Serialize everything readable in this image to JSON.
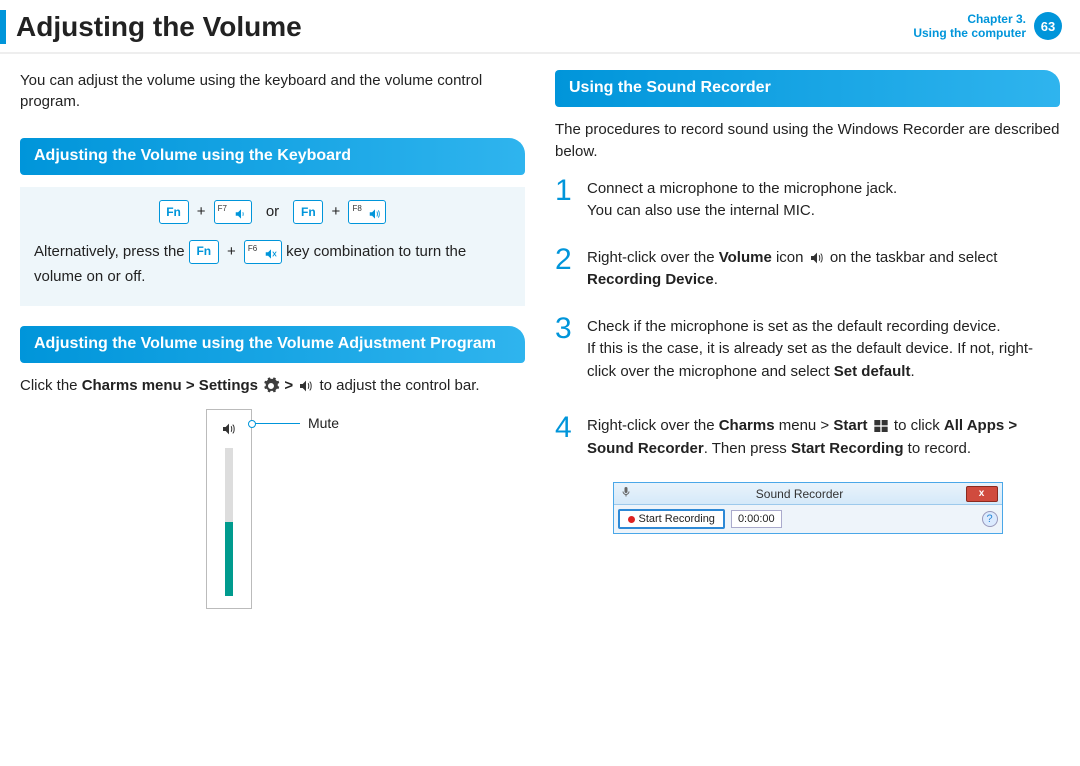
{
  "header": {
    "title": "Adjusting the Volume",
    "chapter_line1": "Chapter 3.",
    "chapter_line2": "Using the computer",
    "page_number": "63"
  },
  "left": {
    "intro": "You can adjust the volume using the keyboard and the volume control program.",
    "section1_title": "Adjusting the Volume using the Keyboard",
    "keys": {
      "fn": "Fn",
      "f7": "F7",
      "f8": "F8",
      "f6": "F6",
      "or": "or",
      "plus": "+"
    },
    "alt_text_pre": "Alternatively, press the ",
    "alt_text_post": " key combination to turn the volume on or off.",
    "section2_title": "Adjusting the Volume using the Volume Adjustment Program",
    "para2_pre": "Click the ",
    "para2_b1": "Charms menu > Settings",
    "para2_mid": " > ",
    "para2_post": " to adjust the control bar.",
    "mute_label": "Mute",
    "volume_fill_percent": 50
  },
  "right": {
    "section_title": "Using the Sound Recorder",
    "intro": "The procedures to record sound using the Windows Recorder are described below.",
    "steps": [
      {
        "num": "1",
        "html": "Connect a microphone to the microphone jack.<br>You can also use the internal MIC."
      },
      {
        "num": "2",
        "html": "Right-click over the <b>Volume</b> icon <span class=\"inline-icon\" data-name=\"volume-icon\" data-interactable=\"false\"><svg class=\"speak-svg\" viewBox=\"0 0 24 24\"><path fill=\"#333\" d=\"M3 9v6h4l5 5V4L7 9H3z\"/><path fill=\"none\" stroke=\"#333\" stroke-width=\"1.5\" d=\"M15 8c1.5 1 1.5 7 0 8 M17.5 5.5c3 2 3 11 0 13\"/></svg></span> on the taskbar and select <b>Recording Device</b>."
      },
      {
        "num": "3",
        "html": "Check if the microphone is set as the default recording device.<p>If this is the case, it is already set as the default device. If not, right-click over the microphone and select <b>Set default</b>.</p>"
      },
      {
        "num": "4",
        "html": "Right-click over the <b>Charms</b> menu &gt; <b>Start</b> <span class=\"inline-icon\" data-name=\"windows-start-icon\" data-interactable=\"false\"><svg viewBox=\"0 0 24 24\" width=\"16\" height=\"16\"><rect x=\"2\" y=\"3\" width=\"9\" height=\"8\" fill=\"#333\"/><rect x=\"13\" y=\"3\" width=\"9\" height=\"8\" fill=\"#333\"/><rect x=\"2\" y=\"13\" width=\"9\" height=\"8\" fill=\"#333\"/><rect x=\"13\" y=\"13\" width=\"9\" height=\"8\" fill=\"#333\"/></svg></span> to click <b>All Apps &gt; Sound Recorder</b>. Then press <b>Start Recording</b> to record."
      }
    ],
    "sound_recorder": {
      "title": "Sound Recorder",
      "button": "Start Recording",
      "time": "0:00:00",
      "close": "x",
      "help": "?"
    }
  },
  "colors": {
    "accent": "#0095da",
    "teal": "#009b8e",
    "box_bg": "#eef6fa"
  }
}
